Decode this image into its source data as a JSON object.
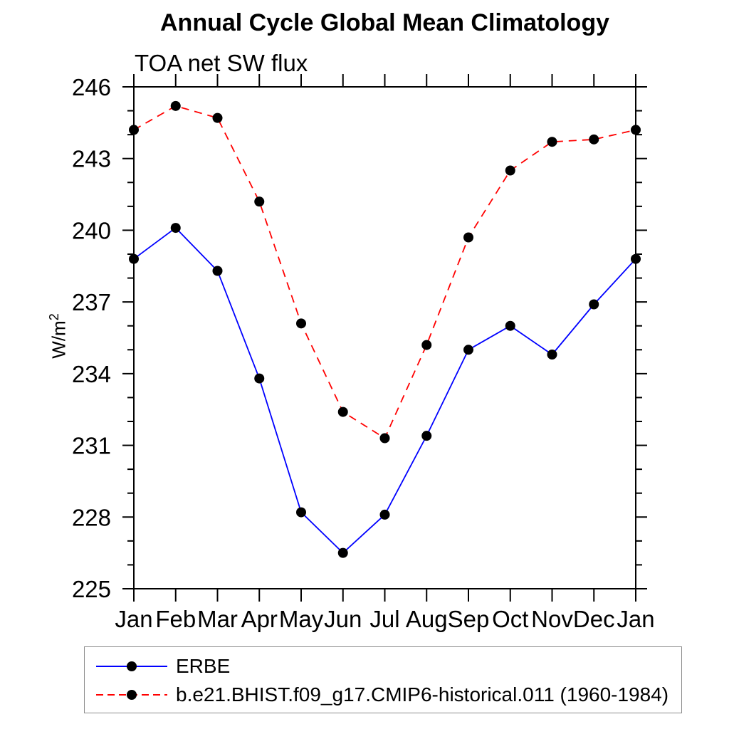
{
  "chart_data": {
    "type": "line",
    "title": "Annual Cycle Global Mean Climatology",
    "subtitle": "TOA net SW flux",
    "ylabel": {
      "base": "W/m",
      "sup": "2"
    },
    "xlabel": "",
    "x_tick_labels": [
      "Jan",
      "Feb",
      "Mar",
      "Apr",
      "May",
      "Jun",
      "Jul",
      "Aug",
      "Sep",
      "Oct",
      "Nov",
      "Dec",
      "Jan"
    ],
    "ylim": [
      225,
      246
    ],
    "y_ticks_major": [
      225,
      228,
      231,
      234,
      237,
      240,
      243,
      246
    ],
    "y_minor_step": 1,
    "grid": false,
    "legend_position": "bottom-left-box",
    "series": [
      {
        "name": "ERBE",
        "line_color": "#0000ff",
        "line_style": "solid",
        "marker": "filled-circle",
        "marker_color": "#000000",
        "values": [
          238.8,
          240.1,
          238.3,
          233.8,
          228.2,
          226.5,
          228.1,
          231.4,
          235.0,
          236.0,
          234.8,
          236.9,
          238.8
        ]
      },
      {
        "name": "b.e21.BHIST.f09_g17.CMIP6-historical.011 (1960-1984)",
        "line_color": "#ff0000",
        "line_style": "dashed",
        "marker": "filled-circle",
        "marker_color": "#000000",
        "values": [
          244.2,
          245.2,
          244.7,
          241.2,
          236.1,
          232.4,
          231.3,
          235.2,
          239.7,
          242.5,
          243.7,
          243.8,
          244.2
        ]
      }
    ]
  },
  "legend": {
    "items": [
      {
        "label": "ERBE",
        "color": "#0000ff",
        "style": "solid"
      },
      {
        "label": "b.e21.BHIST.f09_g17.CMIP6-historical.011 (1960-1984)",
        "color": "#ff0000",
        "style": "dashed"
      }
    ]
  },
  "colors": {
    "axis": "#000000",
    "marker": "#000000",
    "erbe_line": "#0000ff",
    "model_line": "#ff0000",
    "legend_border": "#8c8c8c"
  }
}
